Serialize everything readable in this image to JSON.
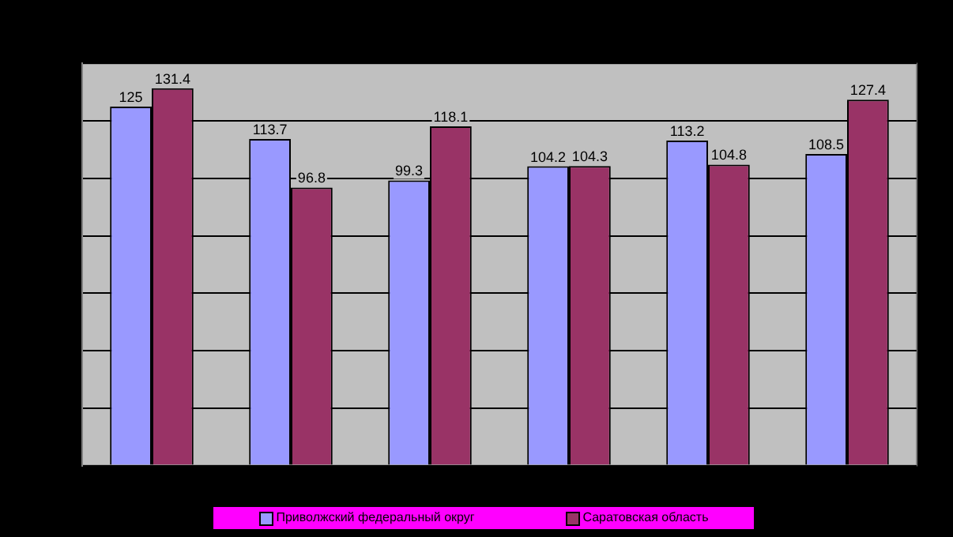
{
  "chart_data": {
    "type": "bar",
    "categories": [
      null,
      null,
      null,
      null,
      null,
      null
    ],
    "series": [
      {
        "name": "Приволжский федеральный округ",
        "color": "#9999ff",
        "values": [
          125,
          113.7,
          99.3,
          104.2,
          113.2,
          108.5
        ]
      },
      {
        "name": "Саратовская область",
        "color": "#993366",
        "values": [
          131.4,
          96.8,
          118.1,
          104.3,
          104.8,
          127.4
        ]
      }
    ],
    "ylim": [
      0,
      140
    ],
    "yticks": [
      {
        "value": 0,
        "label": null
      },
      {
        "value": 20,
        "label": null
      },
      {
        "value": 40,
        "label": null
      },
      {
        "value": 60,
        "label": null
      },
      {
        "value": 80,
        "label": null
      },
      {
        "value": 100,
        "label": null
      },
      {
        "value": 120,
        "label": null
      },
      {
        "value": 140,
        "label": null
      }
    ],
    "grid": "y",
    "legend": "bottom",
    "data_labels": true
  }
}
